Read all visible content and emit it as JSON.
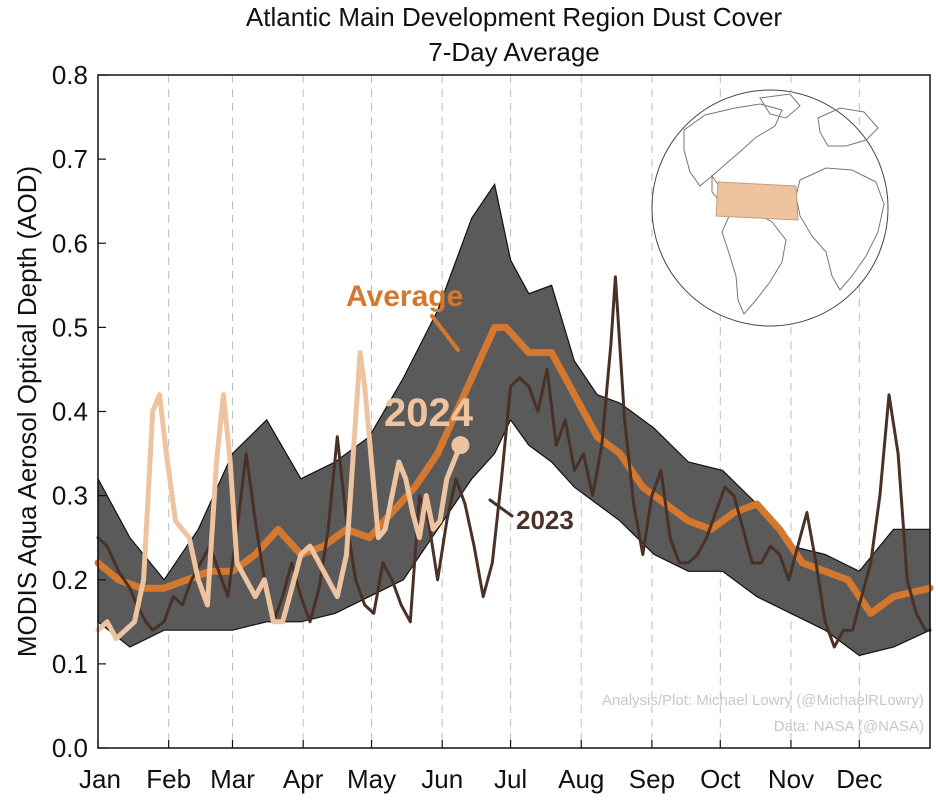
{
  "chart_data": {
    "type": "line",
    "title": "Atlantic Main Development Region Dust Cover",
    "subtitle": "7-Day Average",
    "ylabel": "MODIS Aqua Aerosol Optical Depth (AOD)",
    "xlabel": "",
    "ylim": [
      0.0,
      0.8
    ],
    "yticks": [
      "0.0",
      "0.1",
      "0.2",
      "0.3",
      "0.4",
      "0.5",
      "0.6",
      "0.7",
      "0.8"
    ],
    "x_unit": "day of year",
    "xlim": [
      1,
      366
    ],
    "months": [
      "Jan",
      "Feb",
      "Mar",
      "Apr",
      "May",
      "Jun",
      "Jul",
      "Aug",
      "Sep",
      "Oct",
      "Nov",
      "Dec"
    ],
    "month_start_days": [
      1,
      32,
      60,
      91,
      121,
      152,
      182,
      213,
      244,
      274,
      305,
      335
    ],
    "grid": "vertical dashed at month starts",
    "band": {
      "x": [
        1,
        15,
        30,
        45,
        60,
        75,
        90,
        105,
        120,
        135,
        150,
        165,
        175,
        182,
        190,
        200,
        210,
        220,
        230,
        245,
        260,
        275,
        290,
        305,
        320,
        335,
        350,
        366
      ],
      "upper": [
        0.32,
        0.25,
        0.2,
        0.26,
        0.35,
        0.39,
        0.32,
        0.34,
        0.37,
        0.44,
        0.52,
        0.63,
        0.67,
        0.58,
        0.54,
        0.55,
        0.46,
        0.42,
        0.41,
        0.38,
        0.34,
        0.33,
        0.29,
        0.24,
        0.23,
        0.21,
        0.26,
        0.26
      ],
      "lower": [
        0.15,
        0.12,
        0.14,
        0.14,
        0.14,
        0.15,
        0.15,
        0.16,
        0.18,
        0.2,
        0.26,
        0.32,
        0.35,
        0.39,
        0.36,
        0.34,
        0.31,
        0.29,
        0.27,
        0.23,
        0.21,
        0.21,
        0.18,
        0.16,
        0.14,
        0.11,
        0.12,
        0.14
      ]
    },
    "series": [
      {
        "name": "Average",
        "color": "#D4782F",
        "x": [
          1,
          10,
          20,
          30,
          40,
          50,
          60,
          70,
          80,
          90,
          100,
          110,
          120,
          130,
          140,
          150,
          160,
          170,
          175,
          180,
          190,
          200,
          210,
          220,
          230,
          240,
          250,
          260,
          270,
          280,
          290,
          300,
          310,
          320,
          330,
          340,
          350,
          366
        ],
        "y": [
          0.22,
          0.2,
          0.19,
          0.19,
          0.2,
          0.21,
          0.21,
          0.23,
          0.26,
          0.23,
          0.24,
          0.26,
          0.25,
          0.28,
          0.31,
          0.35,
          0.41,
          0.47,
          0.5,
          0.5,
          0.47,
          0.47,
          0.42,
          0.37,
          0.35,
          0.31,
          0.29,
          0.27,
          0.26,
          0.28,
          0.29,
          0.26,
          0.22,
          0.21,
          0.2,
          0.16,
          0.18,
          0.19
        ]
      },
      {
        "name": "2023",
        "color": "#4A3128",
        "x": [
          1,
          5,
          10,
          15,
          18,
          22,
          25,
          30,
          34,
          38,
          42,
          46,
          50,
          54,
          58,
          62,
          66,
          70,
          74,
          78,
          82,
          86,
          90,
          94,
          98,
          102,
          106,
          110,
          114,
          118,
          122,
          126,
          130,
          134,
          138,
          142,
          146,
          150,
          154,
          158,
          162,
          166,
          170,
          174,
          178,
          182,
          186,
          190,
          194,
          198,
          202,
          206,
          210,
          214,
          218,
          222,
          226,
          228,
          232,
          236,
          240,
          244,
          248,
          252,
          256,
          260,
          264,
          268,
          272,
          276,
          280,
          284,
          288,
          292,
          296,
          300,
          304,
          308,
          312,
          316,
          320,
          324,
          328,
          332,
          336,
          340,
          344,
          348,
          352,
          356,
          360,
          364,
          366
        ],
        "y": [
          0.25,
          0.24,
          0.21,
          0.19,
          0.17,
          0.15,
          0.14,
          0.15,
          0.18,
          0.17,
          0.2,
          0.22,
          0.24,
          0.21,
          0.18,
          0.26,
          0.35,
          0.27,
          0.2,
          0.15,
          0.18,
          0.22,
          0.18,
          0.15,
          0.19,
          0.26,
          0.37,
          0.27,
          0.2,
          0.17,
          0.16,
          0.22,
          0.2,
          0.17,
          0.15,
          0.3,
          0.27,
          0.2,
          0.27,
          0.32,
          0.29,
          0.24,
          0.18,
          0.22,
          0.32,
          0.43,
          0.44,
          0.43,
          0.4,
          0.45,
          0.36,
          0.39,
          0.33,
          0.35,
          0.3,
          0.36,
          0.48,
          0.56,
          0.39,
          0.29,
          0.23,
          0.3,
          0.33,
          0.25,
          0.22,
          0.22,
          0.23,
          0.25,
          0.28,
          0.31,
          0.3,
          0.26,
          0.22,
          0.22,
          0.24,
          0.23,
          0.2,
          0.24,
          0.28,
          0.22,
          0.15,
          0.12,
          0.14,
          0.14,
          0.18,
          0.22,
          0.3,
          0.42,
          0.35,
          0.2,
          0.16,
          0.14,
          0.14
        ]
      },
      {
        "name": "2024",
        "color": "#EEC3A0",
        "x": [
          1,
          5,
          9,
          13,
          17,
          21,
          25,
          28,
          31,
          35,
          38,
          41,
          45,
          49,
          53,
          56,
          59,
          62,
          66,
          70,
          74,
          78,
          82,
          86,
          90,
          94,
          98,
          102,
          106,
          110,
          113,
          116,
          118,
          121,
          124,
          127,
          130,
          133,
          136,
          139,
          142,
          145,
          148,
          151,
          154,
          157,
          160
        ],
        "y": [
          0.14,
          0.15,
          0.13,
          0.14,
          0.15,
          0.2,
          0.4,
          0.42,
          0.35,
          0.27,
          0.26,
          0.25,
          0.2,
          0.17,
          0.34,
          0.42,
          0.34,
          0.22,
          0.2,
          0.18,
          0.2,
          0.15,
          0.15,
          0.19,
          0.23,
          0.24,
          0.22,
          0.2,
          0.18,
          0.23,
          0.35,
          0.47,
          0.43,
          0.34,
          0.25,
          0.26,
          0.3,
          0.34,
          0.32,
          0.28,
          0.25,
          0.3,
          0.26,
          0.27,
          0.32,
          0.34,
          0.36
        ]
      }
    ],
    "annotations": {
      "average": "Average",
      "y2024": "2024",
      "y2023": "2023"
    },
    "inset": {
      "type": "globe",
      "region_color": "#EEC3A0"
    },
    "credit_analysis": "Analysis/Plot: Michael Lowry (@MichaelRLowry)",
    "credit_data": "Data: NASA (@NASA)"
  }
}
